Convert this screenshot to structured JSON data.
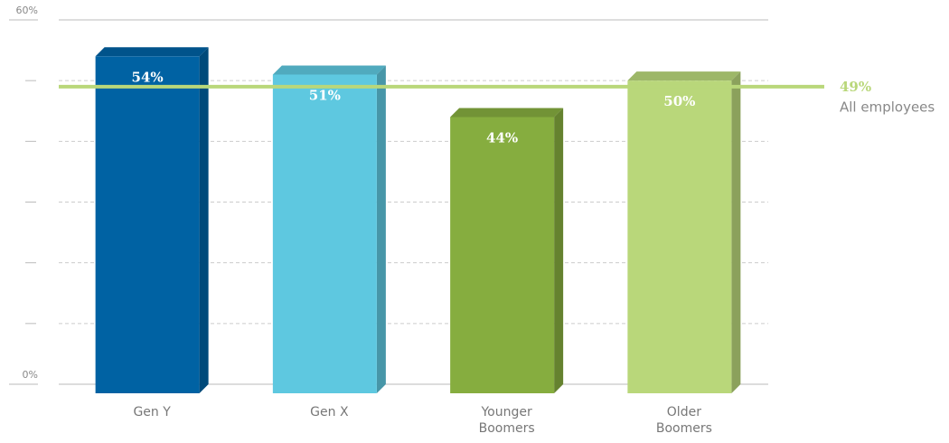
{
  "chart_data": {
    "type": "bar",
    "categories": [
      "Gen Y",
      "Gen X",
      "Younger Boomers",
      "Older Boomers"
    ],
    "values": [
      54,
      51,
      44,
      50
    ],
    "value_labels": [
      "54%",
      "51%",
      "44%",
      "50%"
    ],
    "colors": [
      "#0062a3",
      "#5ec8e0",
      "#86ad3f",
      "#b9d77a"
    ],
    "ylim": [
      0,
      60
    ],
    "yticks": [
      {
        "value": 0,
        "label": "0%"
      },
      {
        "value": 60,
        "label": "60%"
      }
    ],
    "minor_yticks": [
      10,
      20,
      30,
      40,
      50
    ],
    "grid": true,
    "reference": {
      "value": 49,
      "label": "49%",
      "text": "All employees",
      "color": "#b9d77a"
    }
  }
}
